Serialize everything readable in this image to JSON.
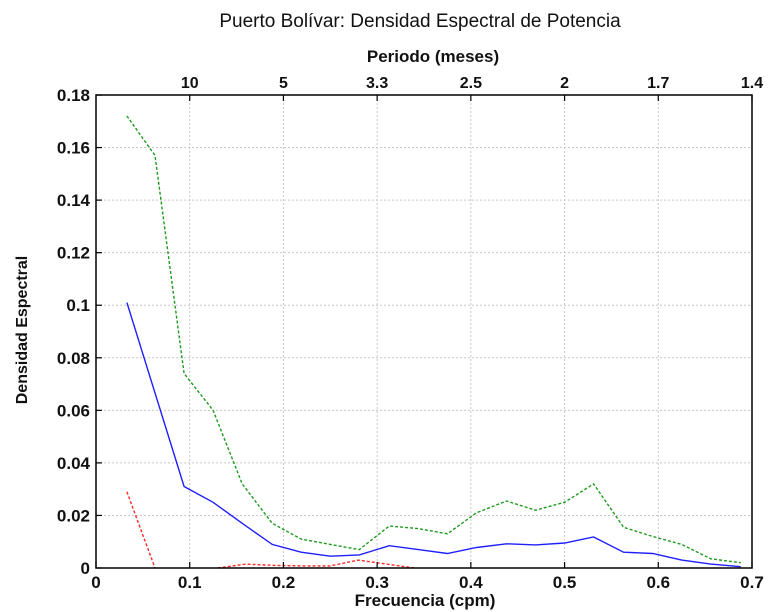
{
  "chart_data": {
    "type": "line",
    "title": "Puerto Bolívar: Densidad Espectral de Potencia",
    "xlabel": "Frecuencia (cpm)",
    "ylabel": "Densidad Espectral",
    "top_axis_label": "Periodo (meses)",
    "xlim": [
      0,
      0.7
    ],
    "ylim": [
      0,
      0.18
    ],
    "x_ticks": [
      "0",
      "0.1",
      "0.2",
      "0.3",
      "0.4",
      "0.5",
      "0.6",
      "0.7"
    ],
    "y_ticks": [
      "0",
      "0.02",
      "0.04",
      "0.06",
      "0.08",
      "0.1",
      "0.12",
      "0.14",
      "0.16",
      "0.18"
    ],
    "top_ticks": [
      {
        "label": "10",
        "x": 0.1
      },
      {
        "label": "5",
        "x": 0.2
      },
      {
        "label": "3.3",
        "x": 0.3
      },
      {
        "label": "2.5",
        "x": 0.4
      },
      {
        "label": "2",
        "x": 0.5
      },
      {
        "label": "1.7",
        "x": 0.6
      },
      {
        "label": "1.4",
        "x": 0.7
      }
    ],
    "grid": true,
    "series": [
      {
        "color": "#1f1fff",
        "style": "solid",
        "x": [
          0.033,
          0.094,
          0.125,
          0.156,
          0.188,
          0.219,
          0.25,
          0.281,
          0.313,
          0.344,
          0.375,
          0.406,
          0.438,
          0.469,
          0.5,
          0.531,
          0.563,
          0.594,
          0.625,
          0.656,
          0.688
        ],
        "y": [
          0.101,
          0.031,
          0.025,
          0.017,
          0.009,
          0.006,
          0.0045,
          0.005,
          0.0085,
          0.007,
          0.0055,
          0.0078,
          0.0092,
          0.0088,
          0.0095,
          0.0118,
          0.006,
          0.0055,
          0.003,
          0.0015,
          0.0005
        ]
      },
      {
        "color": "#1e9b1e",
        "style": "dashed",
        "x": [
          0.033,
          0.063,
          0.094,
          0.125,
          0.156,
          0.188,
          0.219,
          0.25,
          0.281,
          0.313,
          0.344,
          0.375,
          0.406,
          0.438,
          0.469,
          0.5,
          0.531,
          0.563,
          0.594,
          0.625,
          0.656,
          0.688
        ],
        "y": [
          0.172,
          0.157,
          0.074,
          0.06,
          0.032,
          0.017,
          0.011,
          0.009,
          0.007,
          0.016,
          0.015,
          0.013,
          0.021,
          0.0255,
          0.022,
          0.025,
          0.032,
          0.0155,
          0.012,
          0.009,
          0.0035,
          0.002
        ]
      },
      {
        "color": "#ff2a2a",
        "style": "dashed",
        "x": [
          0.033,
          0.063
        ],
        "y": [
          0.029,
          0.0
        ]
      },
      {
        "color": "#ff2a2a",
        "style": "dashed",
        "x": [
          0.13,
          0.16,
          0.19,
          0.22,
          0.25,
          0.28,
          0.31,
          0.34
        ],
        "y": [
          0.0,
          0.0015,
          0.001,
          0.0008,
          0.0008,
          0.003,
          0.0015,
          0.0
        ]
      }
    ]
  }
}
